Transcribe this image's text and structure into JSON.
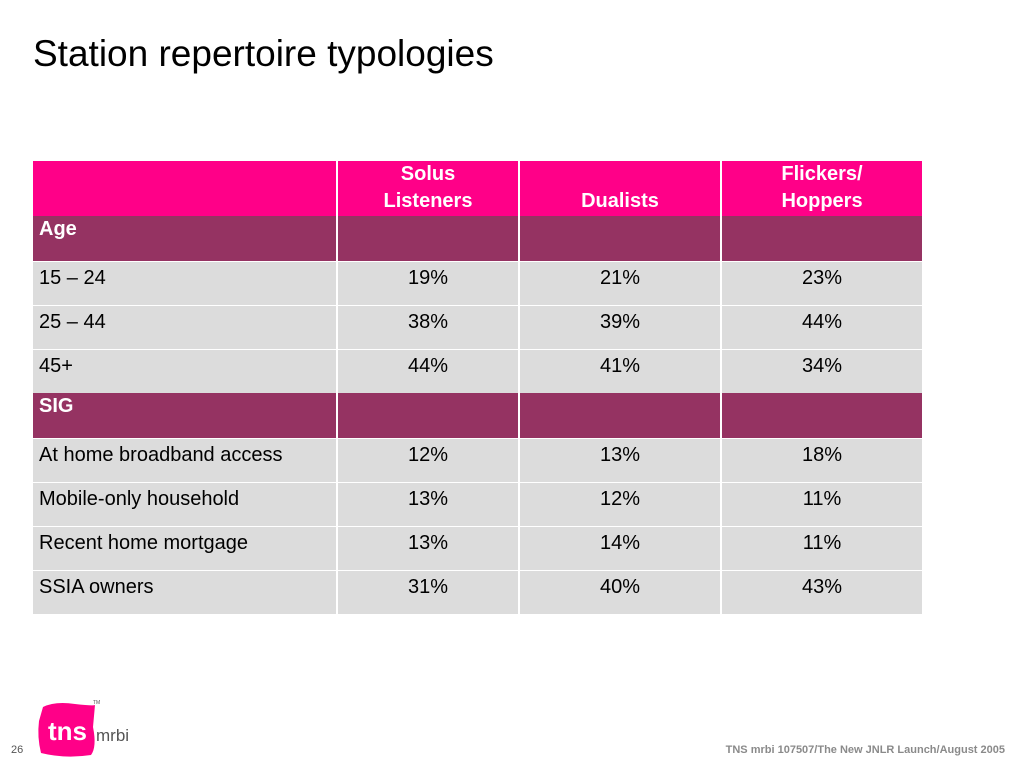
{
  "slide": {
    "title": "Station repertoire typologies",
    "page_number": "26",
    "footer": "TNS mrbi 107507/The New JNLR Launch/August 2005"
  },
  "logo": {
    "main_text": "tns",
    "sub_text": "mrbi",
    "trademark": "TM",
    "color": "#ff0088"
  },
  "table": {
    "header": {
      "blank": "",
      "col1_line1": "Solus",
      "col1_line2": "Listeners",
      "col2": "Dualists",
      "col3_line1": "Flickers/",
      "col3_line2": "Hoppers"
    },
    "sections": [
      {
        "label": "Age",
        "rows": [
          {
            "label": "15 – 24",
            "values": [
              "19%",
              "21%",
              "23%"
            ]
          },
          {
            "label": "25 – 44",
            "values": [
              "38%",
              "39%",
              "44%"
            ]
          },
          {
            "label": "45+",
            "values": [
              "44%",
              "41%",
              "34%"
            ]
          }
        ]
      },
      {
        "label": "SIG",
        "rows": [
          {
            "label": "At home broadband access",
            "values": [
              "12%",
              "13%",
              "18%"
            ]
          },
          {
            "label": "Mobile-only household",
            "values": [
              "13%",
              "12%",
              "11%"
            ]
          },
          {
            "label": "Recent home mortgage",
            "values": [
              "13%",
              "14%",
              "11%"
            ]
          },
          {
            "label": "SSIA owners",
            "values": [
              "31%",
              "40%",
              "43%"
            ]
          }
        ]
      }
    ]
  },
  "colors": {
    "header_bg": "#ff0088",
    "section_bg": "#953362",
    "row_bg": "#dcdcdc"
  }
}
